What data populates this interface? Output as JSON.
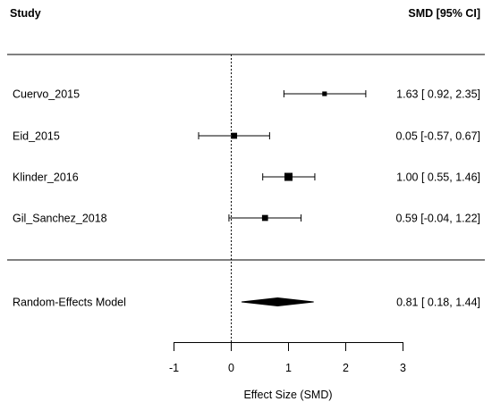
{
  "chart_data": {
    "type": "forest",
    "header": {
      "study_label": "Study",
      "estimate_label": "SMD [95% CI]"
    },
    "studies": [
      {
        "name": "Cuervo_2015",
        "estimate": 1.63,
        "ci_low": 0.92,
        "ci_high": 2.35,
        "estimate_text": "1.63 [ 0.92, 2.35]",
        "weight": 0.2
      },
      {
        "name": "Eid_2015",
        "estimate": 0.05,
        "ci_low": -0.57,
        "ci_high": 0.67,
        "estimate_text": "0.05 [-0.57, 0.67]",
        "weight": 0.45
      },
      {
        "name": "Klinder_2016",
        "estimate": 1.0,
        "ci_low": 0.55,
        "ci_high": 1.46,
        "estimate_text": "1.00 [ 0.55, 1.46]",
        "weight": 1.0
      },
      {
        "name": "Gil_Sanchez_2018",
        "estimate": 0.59,
        "ci_low": -0.04,
        "ci_high": 1.22,
        "estimate_text": "0.59 [-0.04, 1.22]",
        "weight": 0.45
      }
    ],
    "summary": {
      "name": "Random-Effects Model",
      "estimate": 0.81,
      "ci_low": 0.18,
      "ci_high": 1.44,
      "estimate_text": "0.81 [ 0.18, 1.44]"
    },
    "reference_line": 0,
    "x_axis": {
      "label": "Effect Size (SMD)",
      "ticks": [
        -1,
        0,
        1,
        2,
        3
      ],
      "tick_labels": [
        "-1",
        "0",
        "1",
        "2",
        "3"
      ],
      "range": [
        -1,
        3
      ]
    },
    "grid": false
  }
}
